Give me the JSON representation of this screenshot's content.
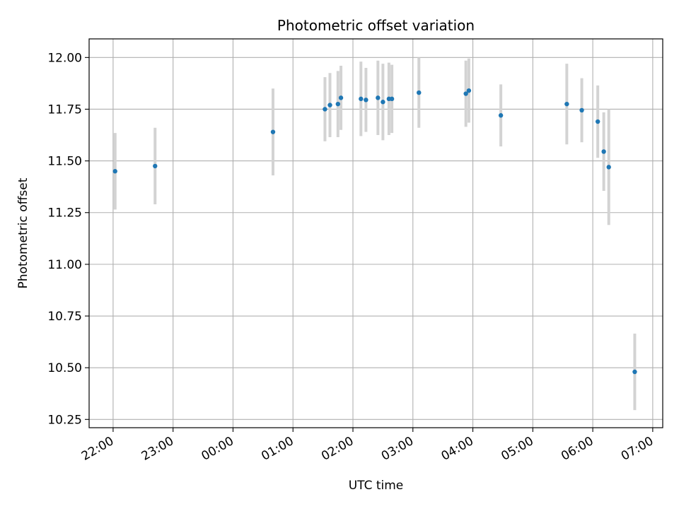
{
  "chart_data": {
    "type": "scatter",
    "title": "Photometric offset variation",
    "xlabel": "UTC time",
    "ylabel": "Photometric offset",
    "x_axis_kind": "time",
    "xlim": [
      "21:36",
      "07:10"
    ],
    "ylim": [
      10.21,
      12.09
    ],
    "grid": true,
    "x_ticks": [
      "22:00",
      "23:00",
      "00:00",
      "01:00",
      "02:00",
      "03:00",
      "04:00",
      "05:00",
      "06:00",
      "07:00"
    ],
    "y_ticks": [
      "10.25",
      "10.50",
      "10.75",
      "11.00",
      "11.25",
      "11.50",
      "11.75",
      "12.00"
    ],
    "marker_color": "#1f77b4",
    "errorbar_color": "#d3d3d3",
    "points": [
      {
        "time": "22:02",
        "y": 11.45,
        "err": 0.185
      },
      {
        "time": "22:42",
        "y": 11.475,
        "err": 0.185
      },
      {
        "time": "00:40",
        "y": 11.64,
        "err": 0.21
      },
      {
        "time": "01:32",
        "y": 11.75,
        "err": 0.155
      },
      {
        "time": "01:37",
        "y": 11.77,
        "err": 0.155
      },
      {
        "time": "01:45",
        "y": 11.775,
        "err": 0.16
      },
      {
        "time": "01:48",
        "y": 11.805,
        "err": 0.155
      },
      {
        "time": "02:08",
        "y": 11.8,
        "err": 0.18
      },
      {
        "time": "02:13",
        "y": 11.795,
        "err": 0.155
      },
      {
        "time": "02:25",
        "y": 11.805,
        "err": 0.18
      },
      {
        "time": "02:30",
        "y": 11.785,
        "err": 0.185
      },
      {
        "time": "02:36",
        "y": 11.8,
        "err": 0.175
      },
      {
        "time": "02:39",
        "y": 11.8,
        "err": 0.165
      },
      {
        "time": "03:06",
        "y": 11.83,
        "err": 0.17
      },
      {
        "time": "03:53",
        "y": 11.825,
        "err": 0.16
      },
      {
        "time": "03:56",
        "y": 11.84,
        "err": 0.155
      },
      {
        "time": "04:28",
        "y": 11.72,
        "err": 0.15
      },
      {
        "time": "05:34",
        "y": 11.775,
        "err": 0.195
      },
      {
        "time": "05:49",
        "y": 11.745,
        "err": 0.155
      },
      {
        "time": "06:05",
        "y": 11.69,
        "err": 0.175
      },
      {
        "time": "06:11",
        "y": 11.545,
        "err": 0.19
      },
      {
        "time": "06:16",
        "y": 11.47,
        "err": 0.28
      },
      {
        "time": "06:42",
        "y": 10.48,
        "err": 0.185
      }
    ]
  }
}
